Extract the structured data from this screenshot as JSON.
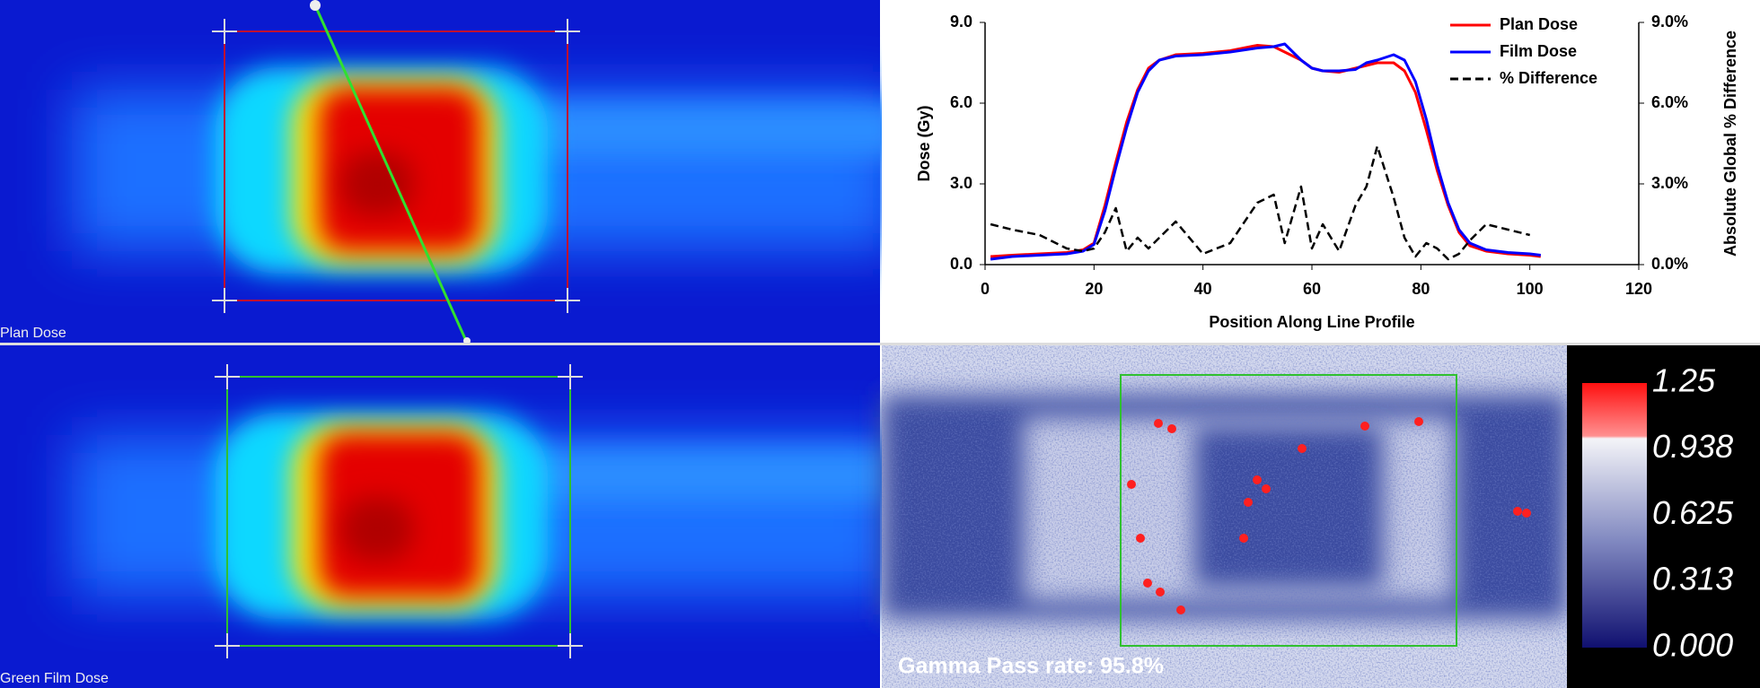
{
  "panels": {
    "plan_label": "Plan Dose",
    "film_label": "Green Film Dose",
    "gamma_label": "Gamma Pass rate: 95.8%"
  },
  "colorbar": {
    "range": [
      0,
      1.25
    ],
    "ticks": [
      1.25,
      0.938,
      0.625,
      0.313,
      {
        "value": 0,
        "label": "0.000"
      }
    ]
  },
  "chart_data": {
    "type": "line",
    "xlabel": "Position Along Line Profile",
    "ylabel": "Dose (Gy)",
    "y2label": "Absolute Global % Difference",
    "x": [
      1,
      5,
      10,
      15,
      18,
      20,
      22,
      24,
      26,
      28,
      30,
      32,
      35,
      40,
      45,
      50,
      53,
      55,
      58,
      60,
      62,
      65,
      68,
      70,
      72,
      75,
      77,
      79,
      81,
      83,
      85,
      87,
      89,
      92,
      96,
      100,
      102
    ],
    "series": [
      {
        "name": "Plan Dose",
        "color": "#ff0000",
        "values": [
          0.3,
          0.35,
          0.4,
          0.45,
          0.55,
          0.8,
          2.2,
          3.8,
          5.3,
          6.5,
          7.3,
          7.6,
          7.8,
          7.85,
          7.95,
          8.15,
          8.1,
          7.9,
          7.6,
          7.3,
          7.2,
          7.15,
          7.3,
          7.4,
          7.5,
          7.5,
          7.2,
          6.4,
          5.0,
          3.5,
          2.2,
          1.2,
          0.7,
          0.5,
          0.4,
          0.35,
          0.3
        ]
      },
      {
        "name": "Film Dose",
        "color": "#0000ff",
        "values": [
          0.2,
          0.3,
          0.35,
          0.4,
          0.5,
          0.75,
          2.0,
          3.6,
          5.1,
          6.4,
          7.2,
          7.6,
          7.75,
          7.8,
          7.9,
          8.05,
          8.1,
          8.2,
          7.6,
          7.3,
          7.2,
          7.2,
          7.25,
          7.5,
          7.6,
          7.8,
          7.6,
          6.8,
          5.4,
          3.7,
          2.3,
          1.3,
          0.8,
          0.55,
          0.45,
          0.4,
          0.35
        ]
      },
      {
        "name": "% Difference",
        "color": "#000000",
        "dashed": true,
        "axis": "y2",
        "values": [
          1.5,
          1.3,
          1.1,
          0.6,
          0.5,
          0.6,
          1.2,
          2.1,
          0.5,
          1.0,
          0.6,
          1.0,
          1.6,
          0.4,
          0.8,
          2.3,
          2.6,
          0.8,
          2.9,
          0.6,
          1.5,
          0.5,
          2.2,
          2.9,
          4.4,
          2.5,
          1.0,
          0.3,
          0.8,
          0.6,
          0.2,
          0.4,
          0.9,
          1.5,
          1.3,
          1.1,
          null
        ]
      }
    ],
    "xlim": [
      0,
      120
    ],
    "xticks": [
      0,
      20,
      40,
      60,
      80,
      100,
      120
    ],
    "ylim": [
      0,
      9
    ],
    "yticks": [
      {
        "value": 0,
        "label": "0.0"
      },
      {
        "value": 3,
        "label": "3.0"
      },
      {
        "value": 6,
        "label": "6.0"
      },
      {
        "value": 9,
        "label": "9.0"
      }
    ],
    "y2lim": [
      0,
      9
    ],
    "y2ticks": [
      {
        "value": 0,
        "label": "0.0%"
      },
      {
        "value": 3,
        "label": "3.0%"
      },
      {
        "value": 6,
        "label": "6.0%"
      },
      {
        "value": 9,
        "label": "9.0%"
      }
    ],
    "legend": "upper right"
  }
}
